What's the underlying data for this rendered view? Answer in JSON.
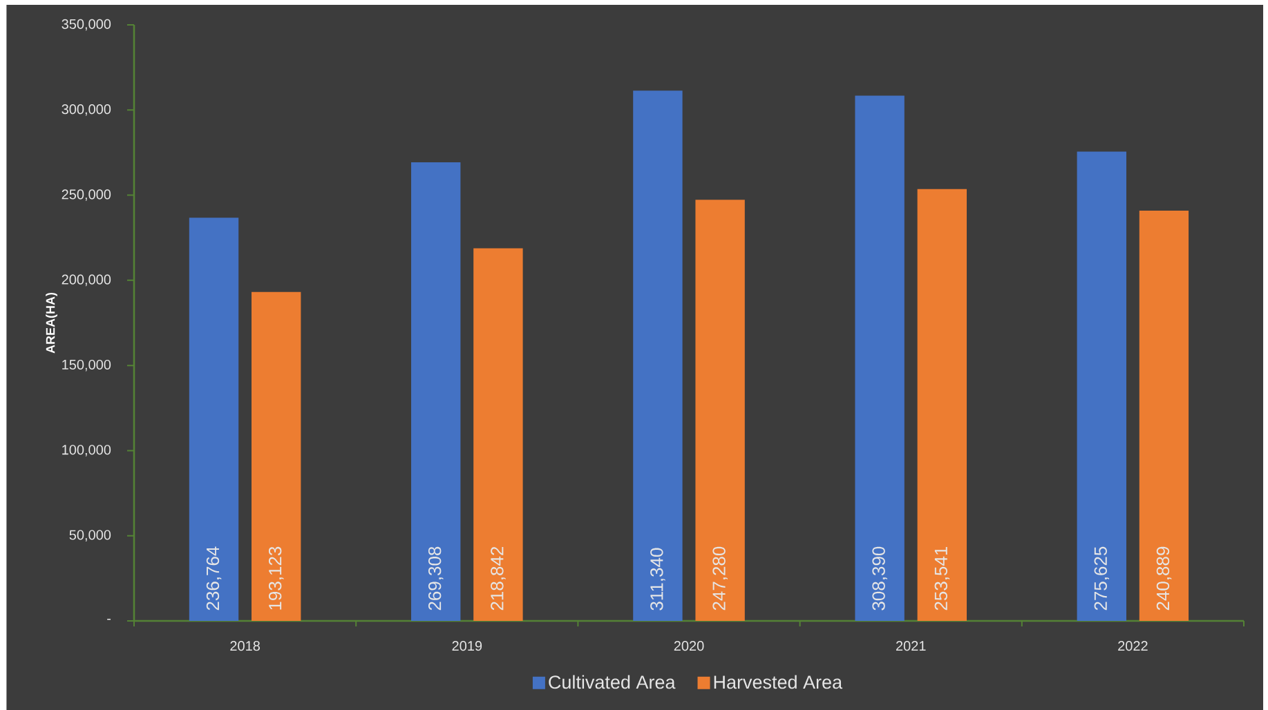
{
  "chart_data": {
    "type": "bar",
    "categories": [
      "2018",
      "2019",
      "2020",
      "2021",
      "2022"
    ],
    "ylabel": "AREA(HA)",
    "ylim": [
      0,
      350000
    ],
    "yticks": [
      {
        "value": 0,
        "label": "-"
      },
      {
        "value": 50000,
        "label": "50,000"
      },
      {
        "value": 100000,
        "label": "100,000"
      },
      {
        "value": 150000,
        "label": "150,000"
      },
      {
        "value": 200000,
        "label": "200,000"
      },
      {
        "value": 250000,
        "label": "250,000"
      },
      {
        "value": 300000,
        "label": "300,000"
      },
      {
        "value": 350000,
        "label": "350,000"
      }
    ],
    "legend": "bottom",
    "series": [
      {
        "name": "Cultivated Area",
        "color": "#4472c4",
        "values": [
          236764,
          269308,
          311340,
          308390,
          275625
        ],
        "value_labels": [
          "236,764",
          "269,308",
          "311,340",
          "308,390",
          "275,625"
        ]
      },
      {
        "name": "Harvested Area",
        "color": "#ed7d31",
        "values": [
          193123,
          218842,
          247280,
          253541,
          240889
        ],
        "value_labels": [
          "193,123",
          "218,842",
          "247,280",
          "253,541",
          "240,889"
        ]
      }
    ]
  }
}
